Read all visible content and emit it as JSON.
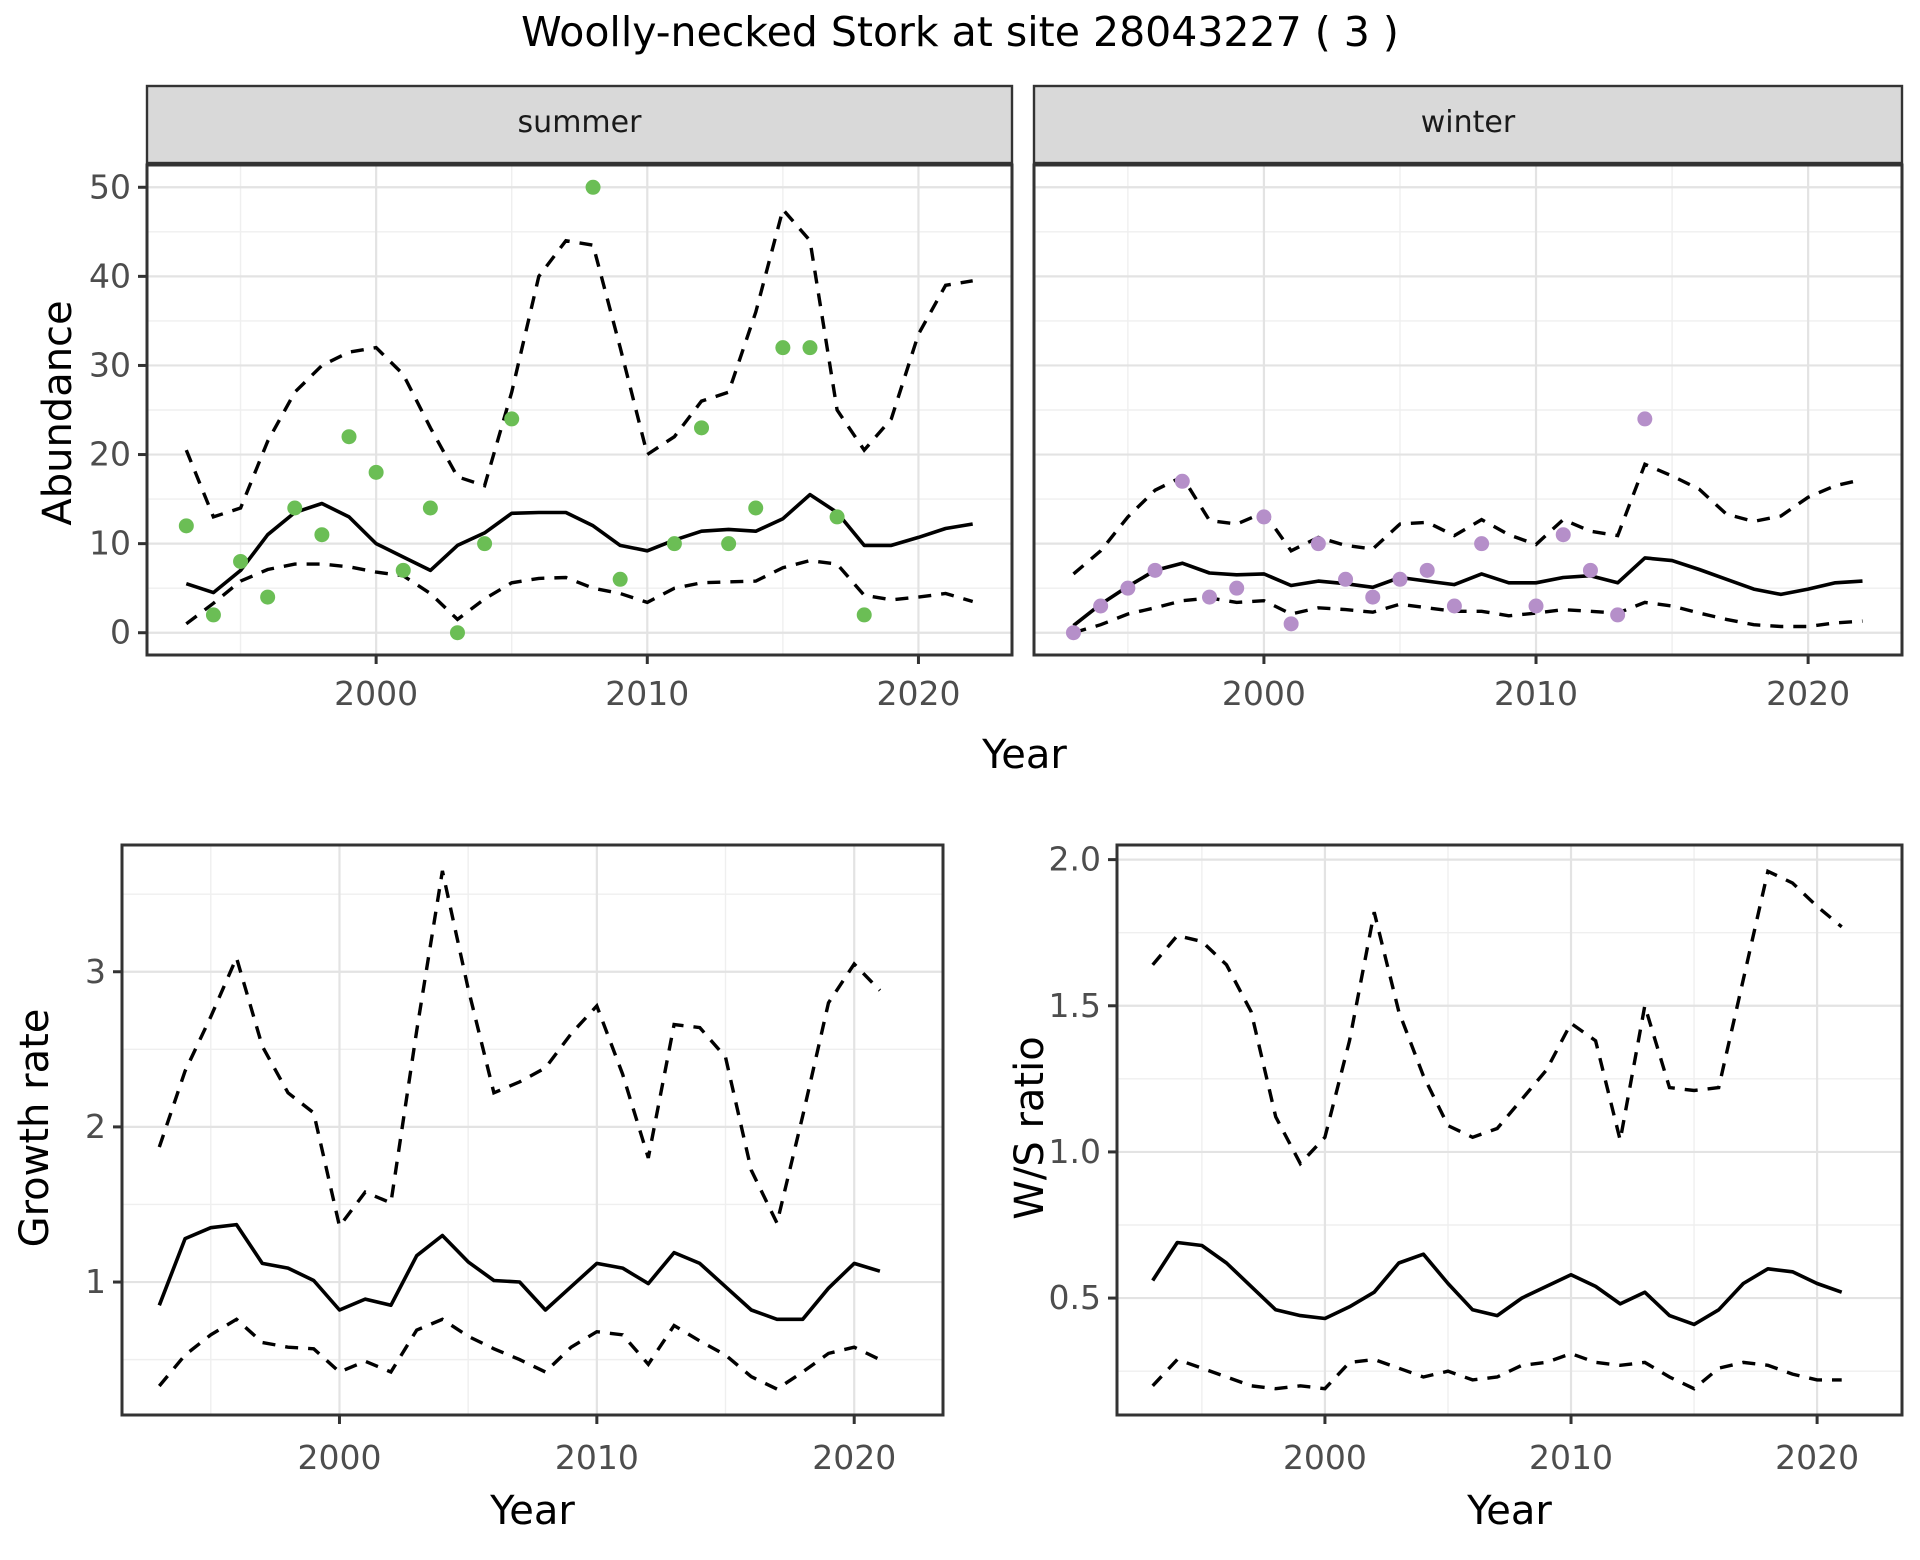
{
  "title": "Woolly-necked Stork at site 28043227 ( 3 )",
  "facets": {
    "summer": "summer",
    "winter": "winter"
  },
  "axis_titles": {
    "abundance": "Abundance",
    "year_top": "Year",
    "year_growth": "Year",
    "year_ws": "Year",
    "growth": "Growth rate",
    "ws": "W/S ratio"
  },
  "colors": {
    "summer_point": "#6bbe55",
    "winter_point": "#b58fc9",
    "line": "#000000",
    "panel_border": "#333333",
    "grid_major": "#e3e3e3",
    "grid_minor": "#efefef",
    "strip_bg": "#d9d9d9",
    "tick_label": "#4d4d4d",
    "tick_mark": "#333333"
  },
  "chart_data": [
    {
      "id": "summer-abundance",
      "type": "line",
      "facet": "summer",
      "xlabel": "Year",
      "ylabel": "Abundance",
      "xlim": [
        1991.55,
        2023.45
      ],
      "ylim": [
        -2.5,
        52.5
      ],
      "x_ticks": [
        2000,
        2010,
        2020
      ],
      "x_tick_labels": [
        "2000",
        "2010",
        "2020"
      ],
      "x_minor": [
        1995,
        2005,
        2015
      ],
      "y_ticks": [
        0,
        10,
        20,
        30,
        40,
        50
      ],
      "y_tick_labels": [
        "0",
        "10",
        "20",
        "30",
        "40",
        "50"
      ],
      "y_minor": [
        5,
        15,
        25,
        35,
        45
      ],
      "years": [
        1993,
        1994,
        1995,
        1996,
        1997,
        1998,
        1999,
        2000,
        2001,
        2002,
        2003,
        2004,
        2005,
        2006,
        2007,
        2008,
        2009,
        2010,
        2011,
        2012,
        2013,
        2014,
        2015,
        2016,
        2017,
        2018,
        2019,
        2020,
        2021,
        2022
      ],
      "fit": [
        5.5,
        4.5,
        7,
        11,
        13.5,
        14.5,
        13,
        10,
        8.5,
        7,
        9.8,
        11.2,
        13.4,
        13.5,
        13.5,
        12,
        9.8,
        9.2,
        10.4,
        11.4,
        11.6,
        11.4,
        12.8,
        15.5,
        13.5,
        9.8,
        9.8,
        10.7,
        11.7,
        12.2
      ],
      "ci_upper": [
        20.5,
        13,
        14,
        21.5,
        27,
        30,
        31.5,
        32,
        29,
        23,
        17.5,
        16.5,
        27,
        40,
        44,
        43.5,
        32,
        20,
        22,
        26,
        27,
        36,
        47.5,
        44,
        25,
        20.5,
        24,
        33.5,
        39,
        39.5
      ],
      "ci_lower": [
        1,
        3.3,
        5.8,
        7.1,
        7.7,
        7.7,
        7.4,
        6.8,
        6.4,
        4.4,
        1.5,
        3.8,
        5.6,
        6.1,
        6.2,
        5,
        4.4,
        3.4,
        5,
        5.6,
        5.7,
        5.8,
        7.3,
        8.1,
        7.7,
        4.2,
        3.7,
        4,
        4.4,
        3.5
      ],
      "points": [
        [
          1993,
          12
        ],
        [
          1994,
          2
        ],
        [
          1995,
          8
        ],
        [
          1996,
          4
        ],
        [
          1997,
          14
        ],
        [
          1998,
          11
        ],
        [
          1999,
          22
        ],
        [
          2000,
          18
        ],
        [
          2001,
          7
        ],
        [
          2002,
          14
        ],
        [
          2003,
          0
        ],
        [
          2004,
          10
        ],
        [
          2005,
          24
        ],
        [
          2008,
          50
        ],
        [
          2009,
          6
        ],
        [
          2011,
          10
        ],
        [
          2012,
          23
        ],
        [
          2013,
          10
        ],
        [
          2014,
          14
        ],
        [
          2015,
          32
        ],
        [
          2016,
          32
        ],
        [
          2017,
          13
        ],
        [
          2018,
          2
        ]
      ],
      "point_color": "#6bbe55"
    },
    {
      "id": "winter-abundance",
      "type": "line",
      "facet": "winter",
      "xlabel": "Year",
      "ylabel": "Abundance",
      "xlim": [
        1991.55,
        2023.45
      ],
      "ylim": [
        -2.5,
        52.5
      ],
      "x_ticks": [
        2000,
        2010,
        2020
      ],
      "x_tick_labels": [
        "2000",
        "2010",
        "2020"
      ],
      "x_minor": [
        1995,
        2005,
        2015
      ],
      "y_ticks": [
        0,
        10,
        20,
        30,
        40,
        50
      ],
      "y_tick_labels": [],
      "y_minor": [
        5,
        15,
        25,
        35,
        45
      ],
      "years": [
        1993,
        1994,
        1995,
        1996,
        1997,
        1998,
        1999,
        2000,
        2001,
        2002,
        2003,
        2004,
        2005,
        2006,
        2007,
        2008,
        2009,
        2010,
        2011,
        2012,
        2013,
        2014,
        2015,
        2016,
        2017,
        2018,
        2019,
        2020,
        2021,
        2022
      ],
      "fit": [
        0.8,
        3.2,
        5.2,
        7.0,
        7.8,
        6.7,
        6.5,
        6.6,
        5.3,
        5.8,
        5.5,
        5.1,
        6.2,
        5.8,
        5.4,
        6.6,
        5.6,
        5.6,
        6.2,
        6.4,
        5.6,
        8.4,
        8.1,
        7.1,
        6.0,
        4.9,
        4.3,
        4.9,
        5.6,
        5.8
      ],
      "ci_upper": [
        6.6,
        9.2,
        13,
        16,
        17.5,
        12.6,
        12.2,
        13.5,
        9.2,
        10.7,
        9.8,
        9.4,
        12.2,
        12.4,
        10.9,
        12.7,
        11,
        9.9,
        12.7,
        11.4,
        10.9,
        18.9,
        17.6,
        16.1,
        13.3,
        12.5,
        13.1,
        15.2,
        16.5,
        17.2
      ],
      "ci_lower": [
        0,
        0.9,
        2.1,
        2.8,
        3.6,
        3.9,
        3.4,
        3.6,
        2.1,
        2.8,
        2.6,
        2.3,
        3.2,
        2.8,
        2.4,
        2.4,
        1.9,
        2.2,
        2.6,
        2.4,
        2.2,
        3.4,
        3,
        2.2,
        1.5,
        0.9,
        0.7,
        0.7,
        1.1,
        1.3
      ],
      "points": [
        [
          1993,
          0
        ],
        [
          1994,
          3
        ],
        [
          1995,
          5
        ],
        [
          1996,
          7
        ],
        [
          1997,
          17
        ],
        [
          1998,
          4
        ],
        [
          1999,
          5
        ],
        [
          2000,
          13
        ],
        [
          2001,
          1
        ],
        [
          2002,
          10
        ],
        [
          2003,
          6
        ],
        [
          2004,
          4
        ],
        [
          2005,
          6
        ],
        [
          2006,
          7
        ],
        [
          2007,
          3
        ],
        [
          2008,
          10
        ],
        [
          2010,
          3
        ],
        [
          2011,
          11
        ],
        [
          2012,
          7
        ],
        [
          2013,
          2
        ],
        [
          2014,
          24
        ]
      ],
      "point_color": "#b58fc9"
    },
    {
      "id": "growth-rate",
      "type": "line",
      "facet": null,
      "xlabel": "Year",
      "ylabel": "Growth rate",
      "xlim": [
        1991.55,
        2023.45
      ],
      "ylim": [
        0.143,
        3.817
      ],
      "x_ticks": [
        2000,
        2010,
        2020
      ],
      "x_tick_labels": [
        "2000",
        "2010",
        "2020"
      ],
      "x_minor": [
        1995,
        2005,
        2015
      ],
      "y_ticks": [
        1,
        2,
        3
      ],
      "y_tick_labels": [
        "1",
        "2",
        "3"
      ],
      "y_minor": [
        0.5,
        1.5,
        2.5,
        3.5
      ],
      "years": [
        1993,
        1994,
        1995,
        1996,
        1997,
        1998,
        1999,
        2000,
        2001,
        2002,
        2003,
        2004,
        2005,
        2006,
        2007,
        2008,
        2009,
        2010,
        2011,
        2012,
        2013,
        2014,
        2015,
        2016,
        2017,
        2018,
        2019,
        2020,
        2021
      ],
      "fit": [
        0.85,
        1.28,
        1.35,
        1.37,
        1.12,
        1.09,
        1.01,
        0.82,
        0.89,
        0.85,
        1.17,
        1.3,
        1.13,
        1.01,
        1.0,
        0.82,
        0.97,
        1.12,
        1.09,
        0.99,
        1.19,
        1.12,
        0.97,
        0.82,
        0.76,
        0.76,
        0.96,
        1.12,
        1.07
      ],
      "ci_upper": [
        1.87,
        2.36,
        2.71,
        3.09,
        2.52,
        2.22,
        2.09,
        1.36,
        1.58,
        1.51,
        2.62,
        3.65,
        2.89,
        2.22,
        2.29,
        2.38,
        2.6,
        2.78,
        2.34,
        1.8,
        2.66,
        2.64,
        2.45,
        1.72,
        1.38,
        2.07,
        2.8,
        3.05,
        2.88
      ],
      "ci_lower": [
        0.33,
        0.53,
        0.66,
        0.76,
        0.61,
        0.58,
        0.57,
        0.42,
        0.49,
        0.42,
        0.69,
        0.76,
        0.65,
        0.57,
        0.5,
        0.42,
        0.58,
        0.68,
        0.66,
        0.47,
        0.72,
        0.62,
        0.53,
        0.39,
        0.31,
        0.42,
        0.54,
        0.58,
        0.5
      ],
      "points": [],
      "point_color": null
    },
    {
      "id": "ws-ratio",
      "type": "line",
      "facet": null,
      "xlabel": "Year",
      "ylabel": "W/S ratio",
      "xlim": [
        1991.55,
        2023.45
      ],
      "ylim": [
        0.1,
        2.05
      ],
      "x_ticks": [
        2000,
        2010,
        2020
      ],
      "x_tick_labels": [
        "2000",
        "2010",
        "2020"
      ],
      "x_minor": [
        1995,
        2005,
        2015
      ],
      "y_ticks": [
        0.5,
        1.0,
        1.5,
        2.0
      ],
      "y_tick_labels": [
        "0.5",
        "1.0",
        "1.5",
        "2.0"
      ],
      "y_minor": [
        0.25,
        0.75,
        1.25,
        1.75
      ],
      "years": [
        1993,
        1994,
        1995,
        1996,
        1997,
        1998,
        1999,
        2000,
        2001,
        2002,
        2003,
        2004,
        2005,
        2006,
        2007,
        2008,
        2009,
        2010,
        2011,
        2012,
        2013,
        2014,
        2015,
        2016,
        2017,
        2018,
        2019,
        2020,
        2021
      ],
      "fit": [
        0.56,
        0.69,
        0.68,
        0.62,
        0.54,
        0.46,
        0.44,
        0.43,
        0.47,
        0.52,
        0.62,
        0.65,
        0.55,
        0.46,
        0.44,
        0.5,
        0.54,
        0.58,
        0.54,
        0.48,
        0.52,
        0.44,
        0.41,
        0.46,
        0.55,
        0.6,
        0.59,
        0.55,
        0.52
      ],
      "ci_upper": [
        1.64,
        1.74,
        1.72,
        1.64,
        1.48,
        1.12,
        0.96,
        1.05,
        1.38,
        1.82,
        1.48,
        1.26,
        1.09,
        1.05,
        1.08,
        1.18,
        1.28,
        1.44,
        1.38,
        1.04,
        1.5,
        1.22,
        1.21,
        1.22,
        1.59,
        1.96,
        1.92,
        1.84,
        1.77
      ],
      "ci_lower": [
        0.2,
        0.29,
        0.26,
        0.23,
        0.2,
        0.19,
        0.2,
        0.19,
        0.28,
        0.29,
        0.26,
        0.23,
        0.25,
        0.22,
        0.23,
        0.27,
        0.28,
        0.31,
        0.28,
        0.27,
        0.28,
        0.23,
        0.19,
        0.26,
        0.28,
        0.27,
        0.24,
        0.22,
        0.22
      ],
      "points": [],
      "point_color": null
    }
  ]
}
